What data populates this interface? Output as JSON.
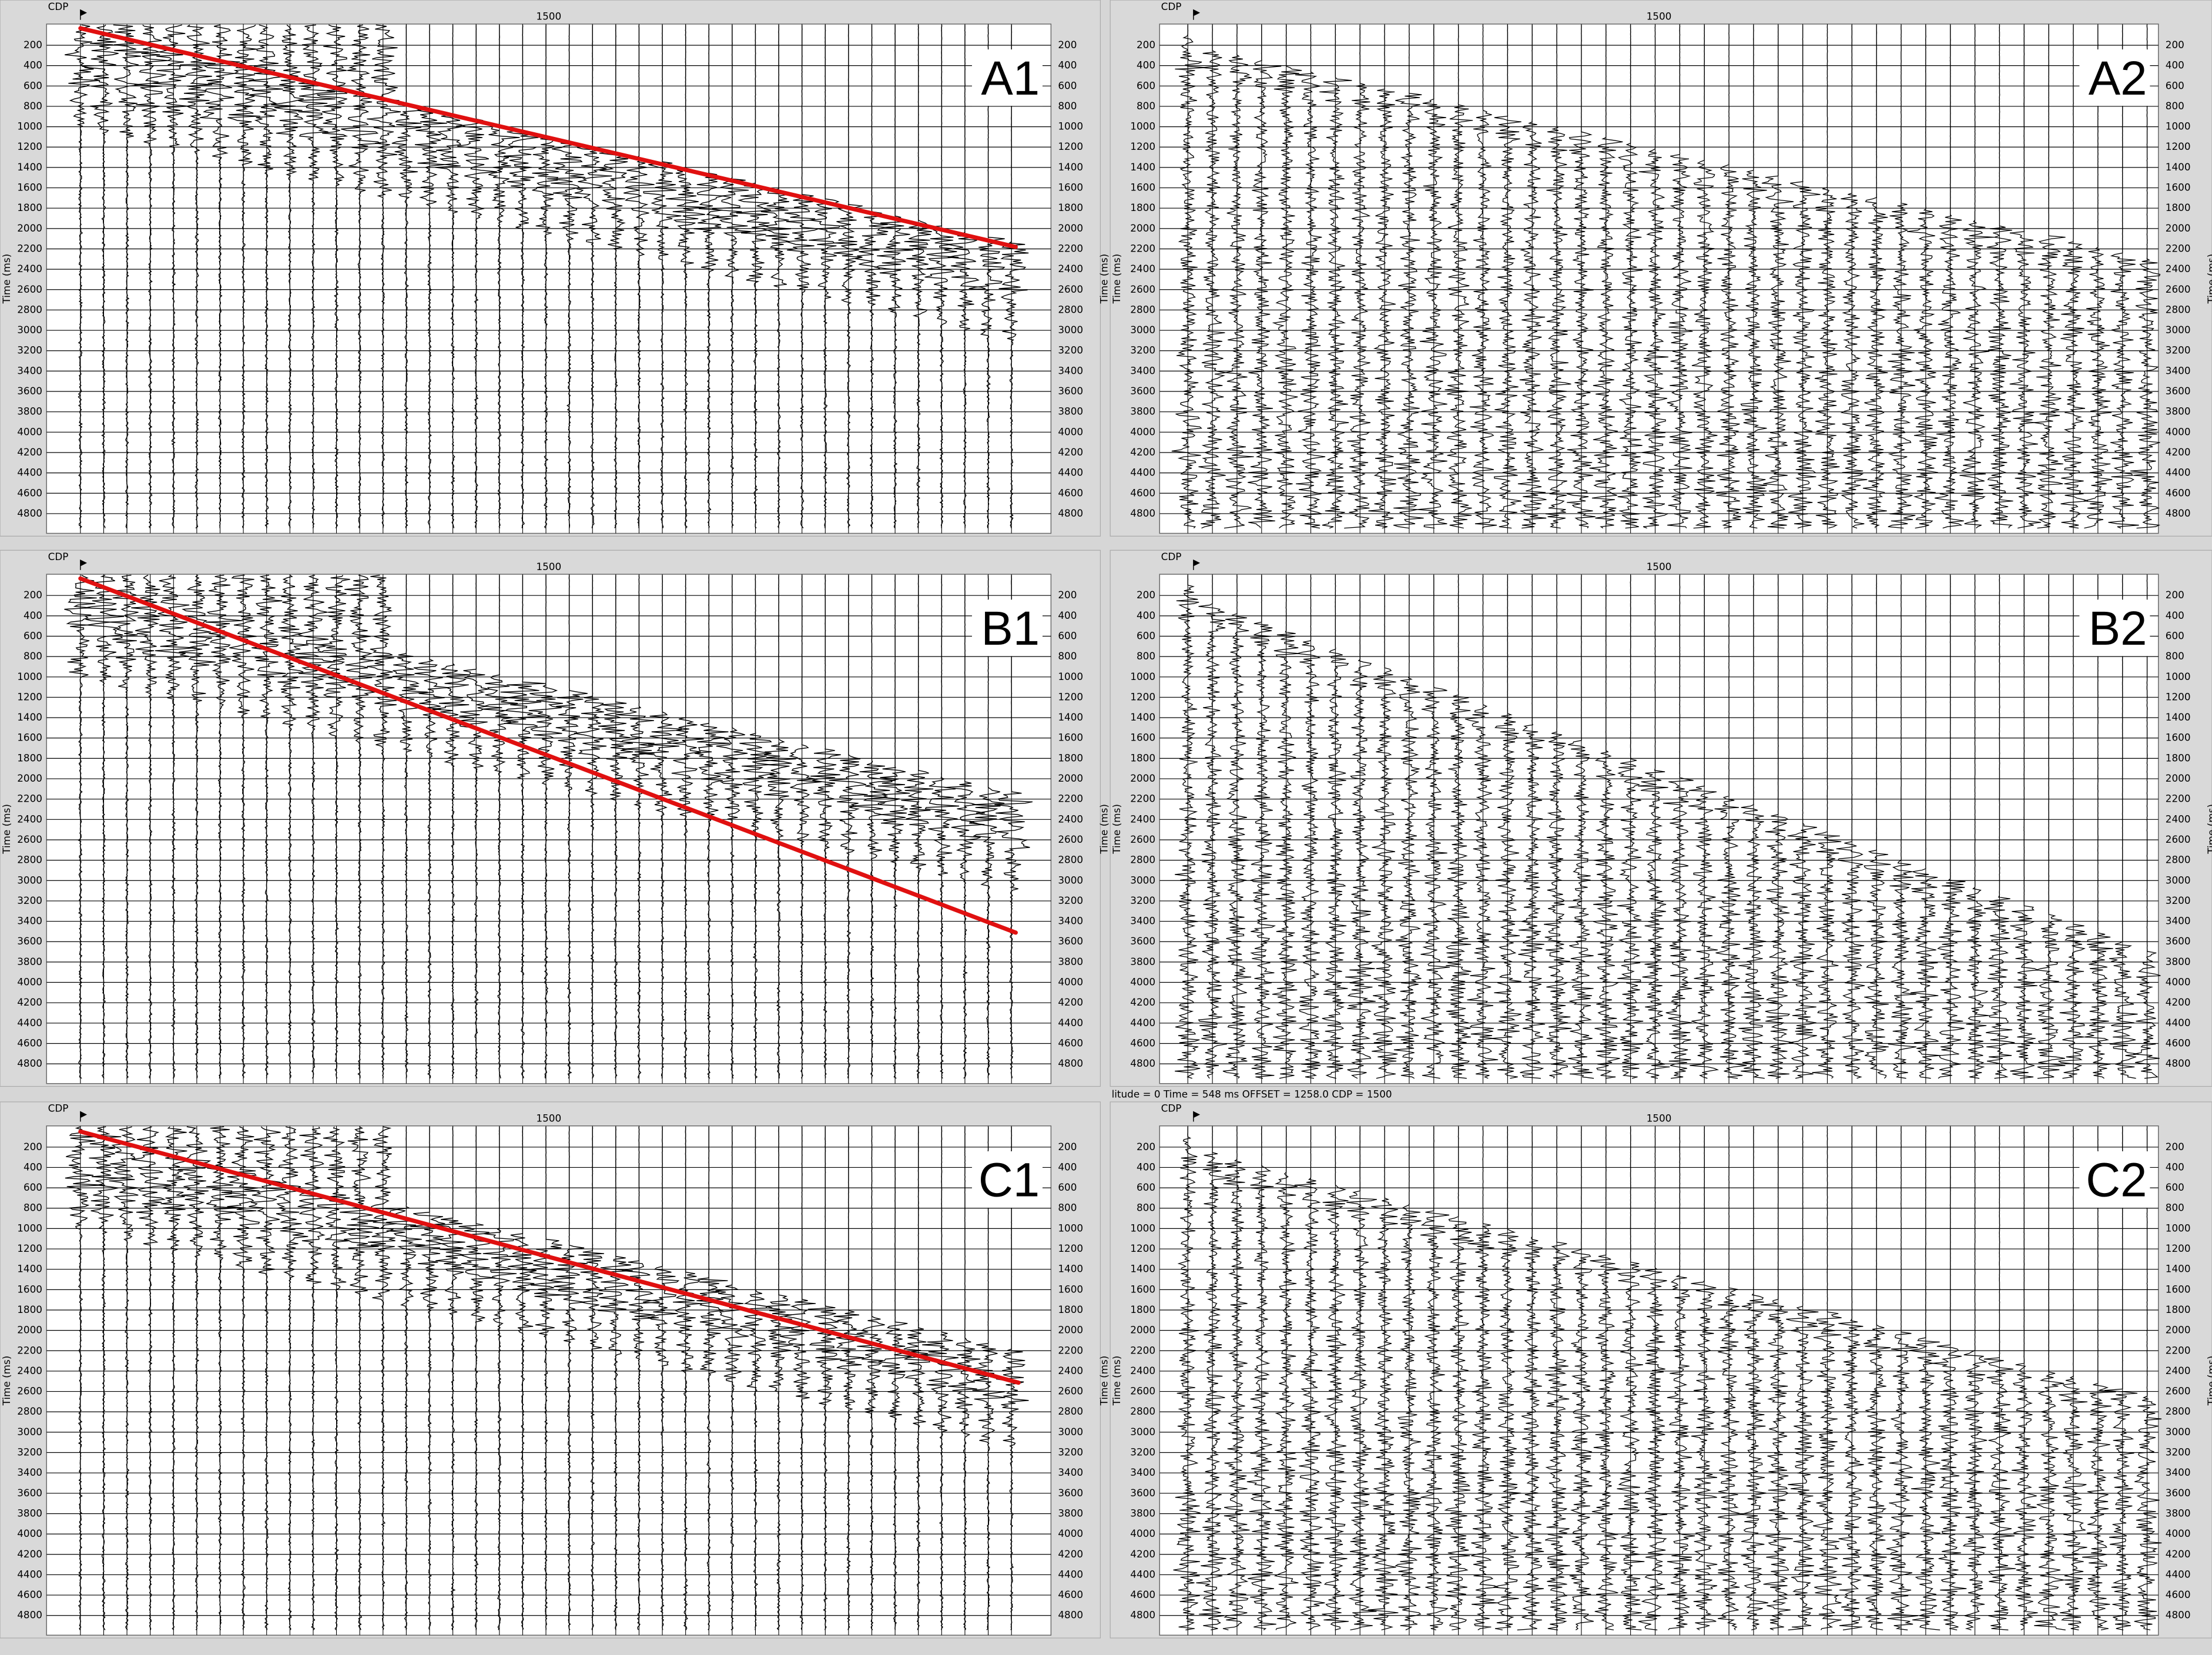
{
  "header_label": "CDP",
  "cdp_label": "1500",
  "axis_title": "Time (ms)",
  "time_ticks": [
    200,
    400,
    600,
    800,
    1000,
    1200,
    1400,
    1600,
    1800,
    2000,
    2200,
    2400,
    2600,
    2800,
    3000,
    3200,
    3400,
    3600,
    3800,
    4000,
    4200,
    4400,
    4600,
    4800
  ],
  "panels": [
    {
      "label": "A1"
    },
    {
      "label": "A2"
    },
    {
      "label": "B1"
    },
    {
      "label": "B2"
    },
    {
      "label": "C1"
    },
    {
      "label": "C2"
    }
  ],
  "status": "litude = 0  Time = 548 ms  OFFSET = 1258.0  CDP = 1500"
}
